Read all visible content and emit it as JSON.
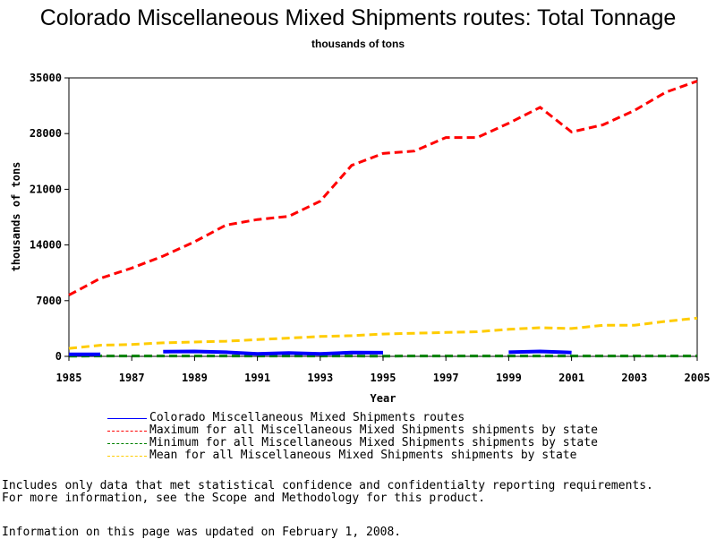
{
  "chart_data": {
    "type": "line",
    "title": "Colorado Miscellaneous Mixed Shipments routes: Total Tonnage",
    "subtitle": "thousands of tons",
    "xlabel": "Year",
    "ylabel": "thousands of tons",
    "xlim": [
      1985,
      2005
    ],
    "ylim": [
      0,
      35000
    ],
    "x_ticks": [
      "1985",
      "1987",
      "1989",
      "1991",
      "1993",
      "1995",
      "1997",
      "1999",
      "2001",
      "2003",
      "2005"
    ],
    "y_ticks": [
      "0",
      "7000",
      "14000",
      "21000",
      "28000",
      "35000"
    ],
    "grid": false,
    "legend_position": "bottom",
    "series": [
      {
        "name": "Colorado Miscellaneous Mixed Shipments routes",
        "color": "#0000ff",
        "style": "solid",
        "segments": [
          [
            [
              1985,
              250
            ],
            [
              1986,
              260
            ]
          ],
          [
            [
              1988,
              600
            ],
            [
              1989,
              620
            ],
            [
              1990,
              520
            ],
            [
              1991,
              320
            ],
            [
              1992,
              420
            ],
            [
              1993,
              300
            ],
            [
              1994,
              480
            ],
            [
              1995,
              460
            ]
          ],
          [
            [
              1999,
              520
            ],
            [
              2000,
              620
            ],
            [
              2001,
              480
            ]
          ]
        ]
      },
      {
        "name": "Maximum for all Miscellaneous Mixed Shipments shipments by state",
        "color": "#ff0000",
        "style": "dashed",
        "segments": [
          [
            [
              1985,
              7700
            ],
            [
              1986,
              9800
            ],
            [
              1987,
              11100
            ],
            [
              1988,
              12600
            ],
            [
              1989,
              14400
            ],
            [
              1990,
              16500
            ],
            [
              1991,
              17200
            ],
            [
              1992,
              17600
            ],
            [
              1993,
              19500
            ],
            [
              1994,
              24000
            ],
            [
              1995,
              25500
            ],
            [
              1996,
              25800
            ],
            [
              1997,
              27500
            ],
            [
              1998,
              27500
            ],
            [
              1999,
              29300
            ],
            [
              2000,
              31300
            ],
            [
              2001,
              28200
            ],
            [
              2002,
              29100
            ],
            [
              2003,
              30900
            ],
            [
              2004,
              33200
            ],
            [
              2005,
              34600
            ]
          ]
        ]
      },
      {
        "name": "Minimum for all Miscellaneous Mixed Shipments shipments by state",
        "color": "#008000",
        "style": "dashed",
        "segments": [
          [
            [
              1985,
              30
            ],
            [
              1990,
              40
            ],
            [
              1995,
              30
            ],
            [
              2000,
              40
            ],
            [
              2005,
              40
            ]
          ]
        ]
      },
      {
        "name": "Mean for all Miscellaneous Mixed Shipments shipments by state",
        "color": "#ffcc00",
        "style": "dashed",
        "segments": [
          [
            [
              1985,
              1000
            ],
            [
              1986,
              1400
            ],
            [
              1987,
              1500
            ],
            [
              1988,
              1700
            ],
            [
              1989,
              1800
            ],
            [
              1990,
              1900
            ],
            [
              1991,
              2100
            ],
            [
              1992,
              2300
            ],
            [
              1993,
              2500
            ],
            [
              1994,
              2600
            ],
            [
              1995,
              2800
            ],
            [
              1996,
              2900
            ],
            [
              1997,
              3000
            ],
            [
              1998,
              3100
            ],
            [
              1999,
              3400
            ],
            [
              2000,
              3600
            ],
            [
              2001,
              3500
            ],
            [
              2002,
              3900
            ],
            [
              2003,
              3900
            ],
            [
              2004,
              4400
            ],
            [
              2005,
              4800
            ]
          ]
        ]
      }
    ]
  },
  "footnotes": {
    "line1": "Includes only data that met statistical confidence and confidentialty reporting requirements.",
    "line2": "For more information, see the Scope and Methodology for this product.",
    "updated": "Information on this page was updated on February 1, 2008."
  }
}
